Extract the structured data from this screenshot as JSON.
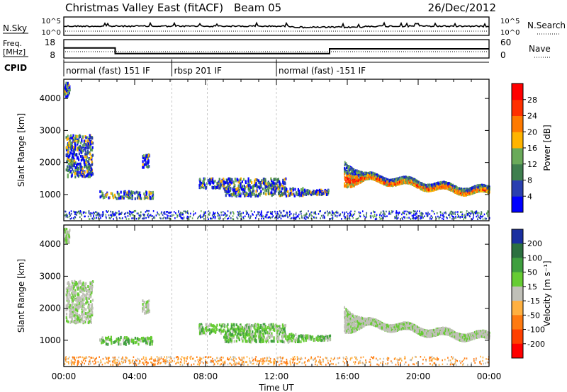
{
  "header": {
    "title": "Christmas Valley East (fitACF)",
    "beam": "Beam 05",
    "date": "26/Dec/2012"
  },
  "status_panels": {
    "nsky_label": "N.Sky",
    "nsearch_label": "N.Search",
    "nsky_ticks": [
      "10^5",
      "10^0"
    ],
    "nsearch_ticks": [
      "10^5",
      "10^0"
    ],
    "freq_label": "Freq.",
    "freq_unit": "[MHz]",
    "freq_ticks": [
      "18",
      "8"
    ],
    "nave_label": "Nave",
    "nave_ticks": [
      "60",
      "0"
    ],
    "cpid_label": "CPID",
    "cpid_segments": [
      {
        "label": "normal (fast) 151 IF",
        "start": 0,
        "end": 6.1
      },
      {
        "label": "rbsp 201 IF",
        "start": 6.1,
        "end": 12.0
      },
      {
        "label": "normal (fast) -151 IF",
        "start": 12.0,
        "end": 24
      }
    ],
    "freq_steps": [
      [
        0,
        13.5
      ],
      [
        2.9,
        13.5
      ],
      [
        2.9,
        10.4
      ],
      [
        15.0,
        10.4
      ],
      [
        15.0,
        13.0
      ],
      [
        24,
        13.0
      ]
    ]
  },
  "chart_data": [
    {
      "type": "heatmap",
      "name": "power",
      "ylabel": "Slant Range [km]",
      "y_ticks": [
        1000,
        2000,
        3000,
        4000
      ],
      "ylim": [
        180,
        4600
      ],
      "xlim": [
        0,
        24
      ],
      "colorbar_label": "Power [dB]",
      "colorbar_ticks": [
        "4",
        "8",
        "12",
        "16",
        "20",
        "24",
        "28"
      ],
      "colors": [
        "#0000ff",
        "#2a3fb0",
        "#3f7f4f",
        "#6aaa5a",
        "#ffb400",
        "#ff7a00",
        "#ff3000",
        "#ff0000"
      ]
    },
    {
      "type": "heatmap",
      "name": "velocity",
      "ylabel": "Slant Range [km]",
      "y_ticks": [
        1000,
        2000,
        3000,
        4000
      ],
      "ylim": [
        180,
        4600
      ],
      "xlim": [
        0,
        24
      ],
      "colorbar_label": "Velocity [m s⁻¹]",
      "colorbar_ticks": [
        "200",
        "100",
        "50",
        "15",
        "-15",
        "-50",
        "-100",
        "-200"
      ],
      "colors": [
        "#1a2fa0",
        "#2c7040",
        "#3f9f3f",
        "#66cc33",
        "#c0c0b8",
        "#ffb040",
        "#ff7a10",
        "#ff4000",
        "#ff0000"
      ]
    }
  ],
  "x_axis": {
    "ticks": [
      "00:00",
      "04:00",
      "08:00",
      "12:00",
      "16:00",
      "20:00",
      "00:00"
    ],
    "label": "Time UT"
  }
}
